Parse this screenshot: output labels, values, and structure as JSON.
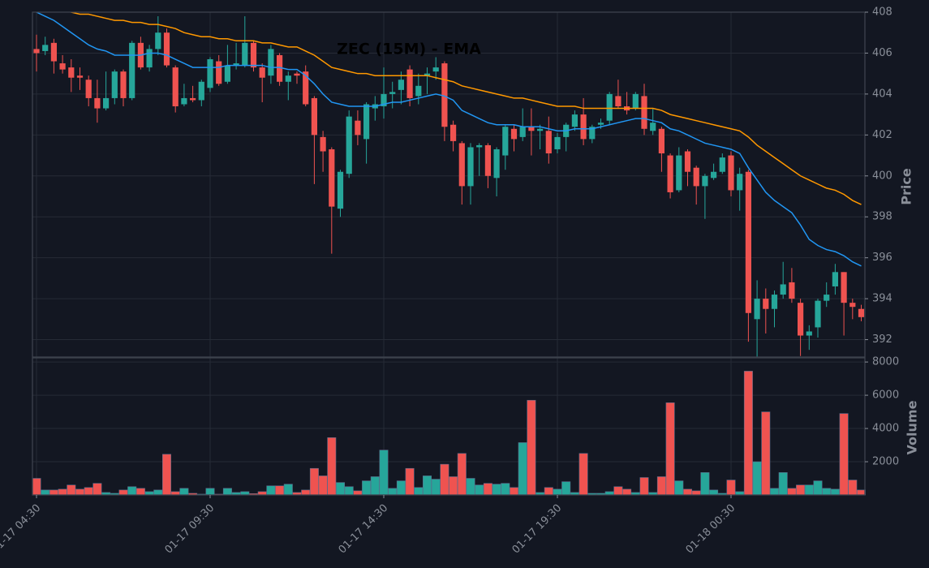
{
  "chart_data": {
    "type": "candlestick",
    "title": "ZEC (15M) - EMA",
    "ylabel": "Price",
    "volume_label": "Volume",
    "up_color": "#26a69a",
    "down_color": "#ef5350",
    "grid": true,
    "x": [
      "01-17 04:30",
      "01-17 04:45",
      "01-17 05:00",
      "01-17 05:15",
      "01-17 05:30",
      "01-17 05:45",
      "01-17 06:00",
      "01-17 06:15",
      "01-17 06:30",
      "01-17 06:45",
      "01-17 07:00",
      "01-17 07:15",
      "01-17 07:30",
      "01-17 07:45",
      "01-17 08:00",
      "01-17 08:15",
      "01-17 08:30",
      "01-17 08:45",
      "01-17 09:00",
      "01-17 09:15",
      "01-17 09:30",
      "01-17 09:45",
      "01-17 10:00",
      "01-17 10:15",
      "01-17 10:30",
      "01-17 10:45",
      "01-17 11:00",
      "01-17 11:15",
      "01-17 11:30",
      "01-17 11:45",
      "01-17 12:00",
      "01-17 12:15",
      "01-17 12:30",
      "01-17 12:45",
      "01-17 13:00",
      "01-17 13:15",
      "01-17 13:30",
      "01-17 13:45",
      "01-17 14:00",
      "01-17 14:15",
      "01-17 14:30",
      "01-17 14:45",
      "01-17 15:00",
      "01-17 15:15",
      "01-17 15:30",
      "01-17 15:45",
      "01-17 16:00",
      "01-17 16:15",
      "01-17 16:30",
      "01-17 16:45",
      "01-17 17:00",
      "01-17 17:15",
      "01-17 17:30",
      "01-17 17:45",
      "01-17 18:00",
      "01-17 18:15",
      "01-17 18:30",
      "01-17 18:45",
      "01-17 19:00",
      "01-17 19:15",
      "01-17 19:30",
      "01-17 19:45",
      "01-17 20:00",
      "01-17 20:15",
      "01-17 20:30",
      "01-17 20:45",
      "01-17 21:00",
      "01-17 21:15",
      "01-17 21:30",
      "01-17 21:45",
      "01-17 22:00",
      "01-17 22:15",
      "01-17 22:30",
      "01-17 22:45",
      "01-17 23:00",
      "01-17 23:15",
      "01-17 23:30",
      "01-17 23:45",
      "01-18 00:00",
      "01-18 00:15",
      "01-18 00:30",
      "01-18 00:45",
      "01-18 01:00",
      "01-18 01:15",
      "01-18 01:30",
      "01-18 01:45",
      "01-18 02:00",
      "01-18 02:15",
      "01-18 02:30",
      "01-18 02:45",
      "01-18 03:00",
      "01-18 03:15",
      "01-18 03:30",
      "01-18 03:45",
      "01-18 04:00",
      "01-18 04:15"
    ],
    "open": [
      406.2,
      406.1,
      406.5,
      405.5,
      405.3,
      404.9,
      404.7,
      403.8,
      403.3,
      403.8,
      405.1,
      403.8,
      406.5,
      405.3,
      406.2,
      407.0,
      405.3,
      403.5,
      403.8,
      403.7,
      404.3,
      405.6,
      404.6,
      405.4,
      405.4,
      406.5,
      405.3,
      404.9,
      405.9,
      404.6,
      405.0,
      405.1,
      403.8,
      401.9,
      401.3,
      398.4,
      400.1,
      402.7,
      401.8,
      403.3,
      403.4,
      404.0,
      404.2,
      405.2,
      403.9,
      404.9,
      405.1,
      405.5,
      402.5,
      401.6,
      399.5,
      401.4,
      401.5,
      399.9,
      401.0,
      402.3,
      401.9,
      402.4,
      402.2,
      402.2,
      401.3,
      401.9,
      402.4,
      403.0,
      401.8,
      402.5,
      402.7,
      403.9,
      403.4,
      403.3,
      403.9,
      402.2,
      402.3,
      401.0,
      399.3,
      401.2,
      400.4,
      399.5,
      399.9,
      400.2,
      401.0,
      399.3,
      400.2,
      393.0,
      394.0,
      393.5,
      394.2,
      394.8,
      393.8,
      392.2,
      392.6,
      393.9,
      394.6,
      395.3,
      393.8,
      393.5
    ],
    "high": [
      406.9,
      406.8,
      406.7,
      405.9,
      405.7,
      405.3,
      404.9,
      404.7,
      405.1,
      405.2,
      405.2,
      406.6,
      406.8,
      406.4,
      407.8,
      407.2,
      405.4,
      404.5,
      404.4,
      404.7,
      405.8,
      405.9,
      406.4,
      406.5,
      407.8,
      406.6,
      405.5,
      406.4,
      406.0,
      405.1,
      405.1,
      405.4,
      403.9,
      402.2,
      401.4,
      400.3,
      403.2,
      403.2,
      403.6,
      403.9,
      405.3,
      404.6,
      405.1,
      405.4,
      405.0,
      405.3,
      405.8,
      405.6,
      402.7,
      401.7,
      401.6,
      401.6,
      401.6,
      401.4,
      402.5,
      402.5,
      403.3,
      403.3,
      402.5,
      402.9,
      402.1,
      402.6,
      403.2,
      403.8,
      402.5,
      402.8,
      404.1,
      404.7,
      404.1,
      404.1,
      404.5,
      403.3,
      402.4,
      401.1,
      401.4,
      401.3,
      400.5,
      400.1,
      400.6,
      401.1,
      401.2,
      400.4,
      400.3,
      394.9,
      394.5,
      394.4,
      395.8,
      395.5,
      394.0,
      392.7,
      394.0,
      394.8,
      395.7,
      395.3,
      394.0,
      393.7
    ],
    "low": [
      405.1,
      405.9,
      405.0,
      405.0,
      404.1,
      404.2,
      403.4,
      402.6,
      403.2,
      403.5,
      403.4,
      403.7,
      405.2,
      405.1,
      405.9,
      405.3,
      403.1,
      403.4,
      403.6,
      403.4,
      404.1,
      404.4,
      404.5,
      405.2,
      405.3,
      405.1,
      403.6,
      404.5,
      404.4,
      403.7,
      404.5,
      403.4,
      399.6,
      400.2,
      396.2,
      398.0,
      399.9,
      401.5,
      400.6,
      402.7,
      402.8,
      403.3,
      403.5,
      403.4,
      403.5,
      404.0,
      404.7,
      401.7,
      401.2,
      398.6,
      398.6,
      400.0,
      399.4,
      399.0,
      400.3,
      401.2,
      401.7,
      401.0,
      401.3,
      400.6,
      401.1,
      401.2,
      402.2,
      401.5,
      401.6,
      402.3,
      402.5,
      403.3,
      403.0,
      403.2,
      402.0,
      402.0,
      400.2,
      398.9,
      399.2,
      399.5,
      398.6,
      397.9,
      399.8,
      400.1,
      399.0,
      398.3,
      391.9,
      391.1,
      392.3,
      392.6,
      394.0,
      393.8,
      391.2,
      391.5,
      392.1,
      393.6,
      394.2,
      392.2,
      393.0,
      392.9
    ],
    "close": [
      406.0,
      406.4,
      405.6,
      405.2,
      404.8,
      404.8,
      403.8,
      403.3,
      403.8,
      405.1,
      403.8,
      406.5,
      405.3,
      406.2,
      407.0,
      405.4,
      403.4,
      403.8,
      403.7,
      404.6,
      405.7,
      404.5,
      405.4,
      405.5,
      406.5,
      405.3,
      404.8,
      406.2,
      404.6,
      404.9,
      404.9,
      403.5,
      402.0,
      401.2,
      398.5,
      400.2,
      402.9,
      402.0,
      403.5,
      403.5,
      404.0,
      404.1,
      404.7,
      403.8,
      404.4,
      405.0,
      405.3,
      402.4,
      401.7,
      399.5,
      401.4,
      401.5,
      400.0,
      401.3,
      402.4,
      401.8,
      402.4,
      402.2,
      402.3,
      401.1,
      401.9,
      402.5,
      403.0,
      401.8,
      402.4,
      402.6,
      404.0,
      403.4,
      403.2,
      404.0,
      402.3,
      402.6,
      401.1,
      399.2,
      401.0,
      400.2,
      399.5,
      400.0,
      400.2,
      400.9,
      399.3,
      400.1,
      393.3,
      394.0,
      393.5,
      394.2,
      394.7,
      394.0,
      392.2,
      392.4,
      393.9,
      394.2,
      395.3,
      393.8,
      393.6,
      393.1
    ],
    "lines": [
      {
        "color": "#2196f3",
        "values": [
          408.0,
          407.8,
          407.6,
          407.3,
          407.0,
          406.7,
          406.4,
          406.2,
          406.1,
          405.9,
          405.9,
          405.9,
          405.9,
          406.0,
          406.0,
          405.9,
          405.7,
          405.5,
          405.3,
          405.3,
          405.3,
          405.3,
          405.4,
          405.4,
          405.4,
          405.4,
          405.4,
          405.3,
          405.3,
          405.2,
          405.2,
          404.9,
          404.5,
          404.0,
          403.6,
          403.5,
          403.4,
          403.4,
          403.4,
          403.4,
          403.5,
          403.6,
          403.6,
          403.7,
          403.8,
          403.9,
          404.0,
          403.9,
          403.7,
          403.2,
          403.0,
          402.8,
          402.6,
          402.5,
          402.5,
          402.5,
          402.4,
          402.4,
          402.4,
          402.3,
          402.2,
          402.2,
          402.3,
          402.3,
          402.3,
          402.4,
          402.5,
          402.6,
          402.7,
          402.8,
          402.8,
          402.7,
          402.6,
          402.3,
          402.2,
          402.0,
          401.8,
          401.6,
          401.5,
          401.4,
          401.3,
          401.1,
          400.4,
          399.8,
          399.2,
          398.8,
          398.5,
          398.2,
          397.6,
          396.9,
          396.6,
          396.4,
          396.3,
          396.1,
          395.8,
          395.6
        ]
      },
      {
        "color": "#ff9800",
        "values": [
          408.5,
          408.4,
          408.3,
          408.1,
          408.0,
          407.9,
          407.9,
          407.8,
          407.7,
          407.6,
          407.6,
          407.5,
          407.5,
          407.4,
          407.4,
          407.3,
          407.2,
          407.0,
          406.9,
          406.8,
          406.8,
          406.7,
          406.7,
          406.6,
          406.6,
          406.6,
          406.5,
          406.5,
          406.4,
          406.3,
          406.3,
          406.1,
          405.9,
          405.6,
          405.3,
          405.2,
          405.1,
          405.0,
          405.0,
          404.9,
          404.9,
          404.9,
          404.9,
          404.9,
          404.9,
          404.9,
          404.8,
          404.7,
          404.6,
          404.4,
          404.3,
          404.2,
          404.1,
          404.0,
          403.9,
          403.8,
          403.8,
          403.7,
          403.6,
          403.5,
          403.4,
          403.4,
          403.4,
          403.3,
          403.3,
          403.3,
          403.3,
          403.3,
          403.3,
          403.3,
          403.3,
          403.3,
          403.2,
          403.0,
          402.9,
          402.8,
          402.7,
          402.6,
          402.5,
          402.4,
          402.3,
          402.2,
          401.9,
          401.5,
          401.2,
          400.9,
          400.6,
          400.3,
          400.0,
          399.8,
          399.6,
          399.4,
          399.3,
          399.1,
          398.8,
          398.6
        ]
      }
    ],
    "volume": [
      1000,
      300,
      300,
      350,
      600,
      350,
      450,
      700,
      150,
      100,
      300,
      500,
      400,
      200,
      300,
      2450,
      200,
      400,
      100,
      50,
      400,
      50,
      400,
      150,
      200,
      80,
      200,
      550,
      550,
      650,
      150,
      300,
      1600,
      1150,
      3450,
      750,
      500,
      250,
      850,
      1100,
      2700,
      400,
      850,
      1600,
      450,
      1150,
      950,
      1850,
      1100,
      2500,
      1000,
      600,
      700,
      650,
      700,
      450,
      3150,
      5700,
      150,
      450,
      350,
      800,
      150,
      2500,
      100,
      100,
      200,
      500,
      350,
      150,
      1050,
      150,
      1100,
      5550,
      850,
      350,
      250,
      1350,
      300,
      100,
      900,
      200,
      7450,
      2000,
      5000,
      400,
      1350,
      400,
      600,
      600,
      850,
      400,
      350,
      4900,
      900,
      300
    ],
    "ylim": [
      391.15,
      408.0
    ],
    "yticks": [
      392,
      394,
      396,
      398,
      400,
      402,
      404,
      406,
      408
    ],
    "volume_ylim": [
      0,
      8250
    ],
    "volume_yticks": [
      2000,
      4000,
      6000,
      8000
    ],
    "xticks": [
      "01-17 04:30",
      "01-17 09:30",
      "01-17 14:30",
      "01-17 19:30",
      "01-18 00:30"
    ]
  }
}
